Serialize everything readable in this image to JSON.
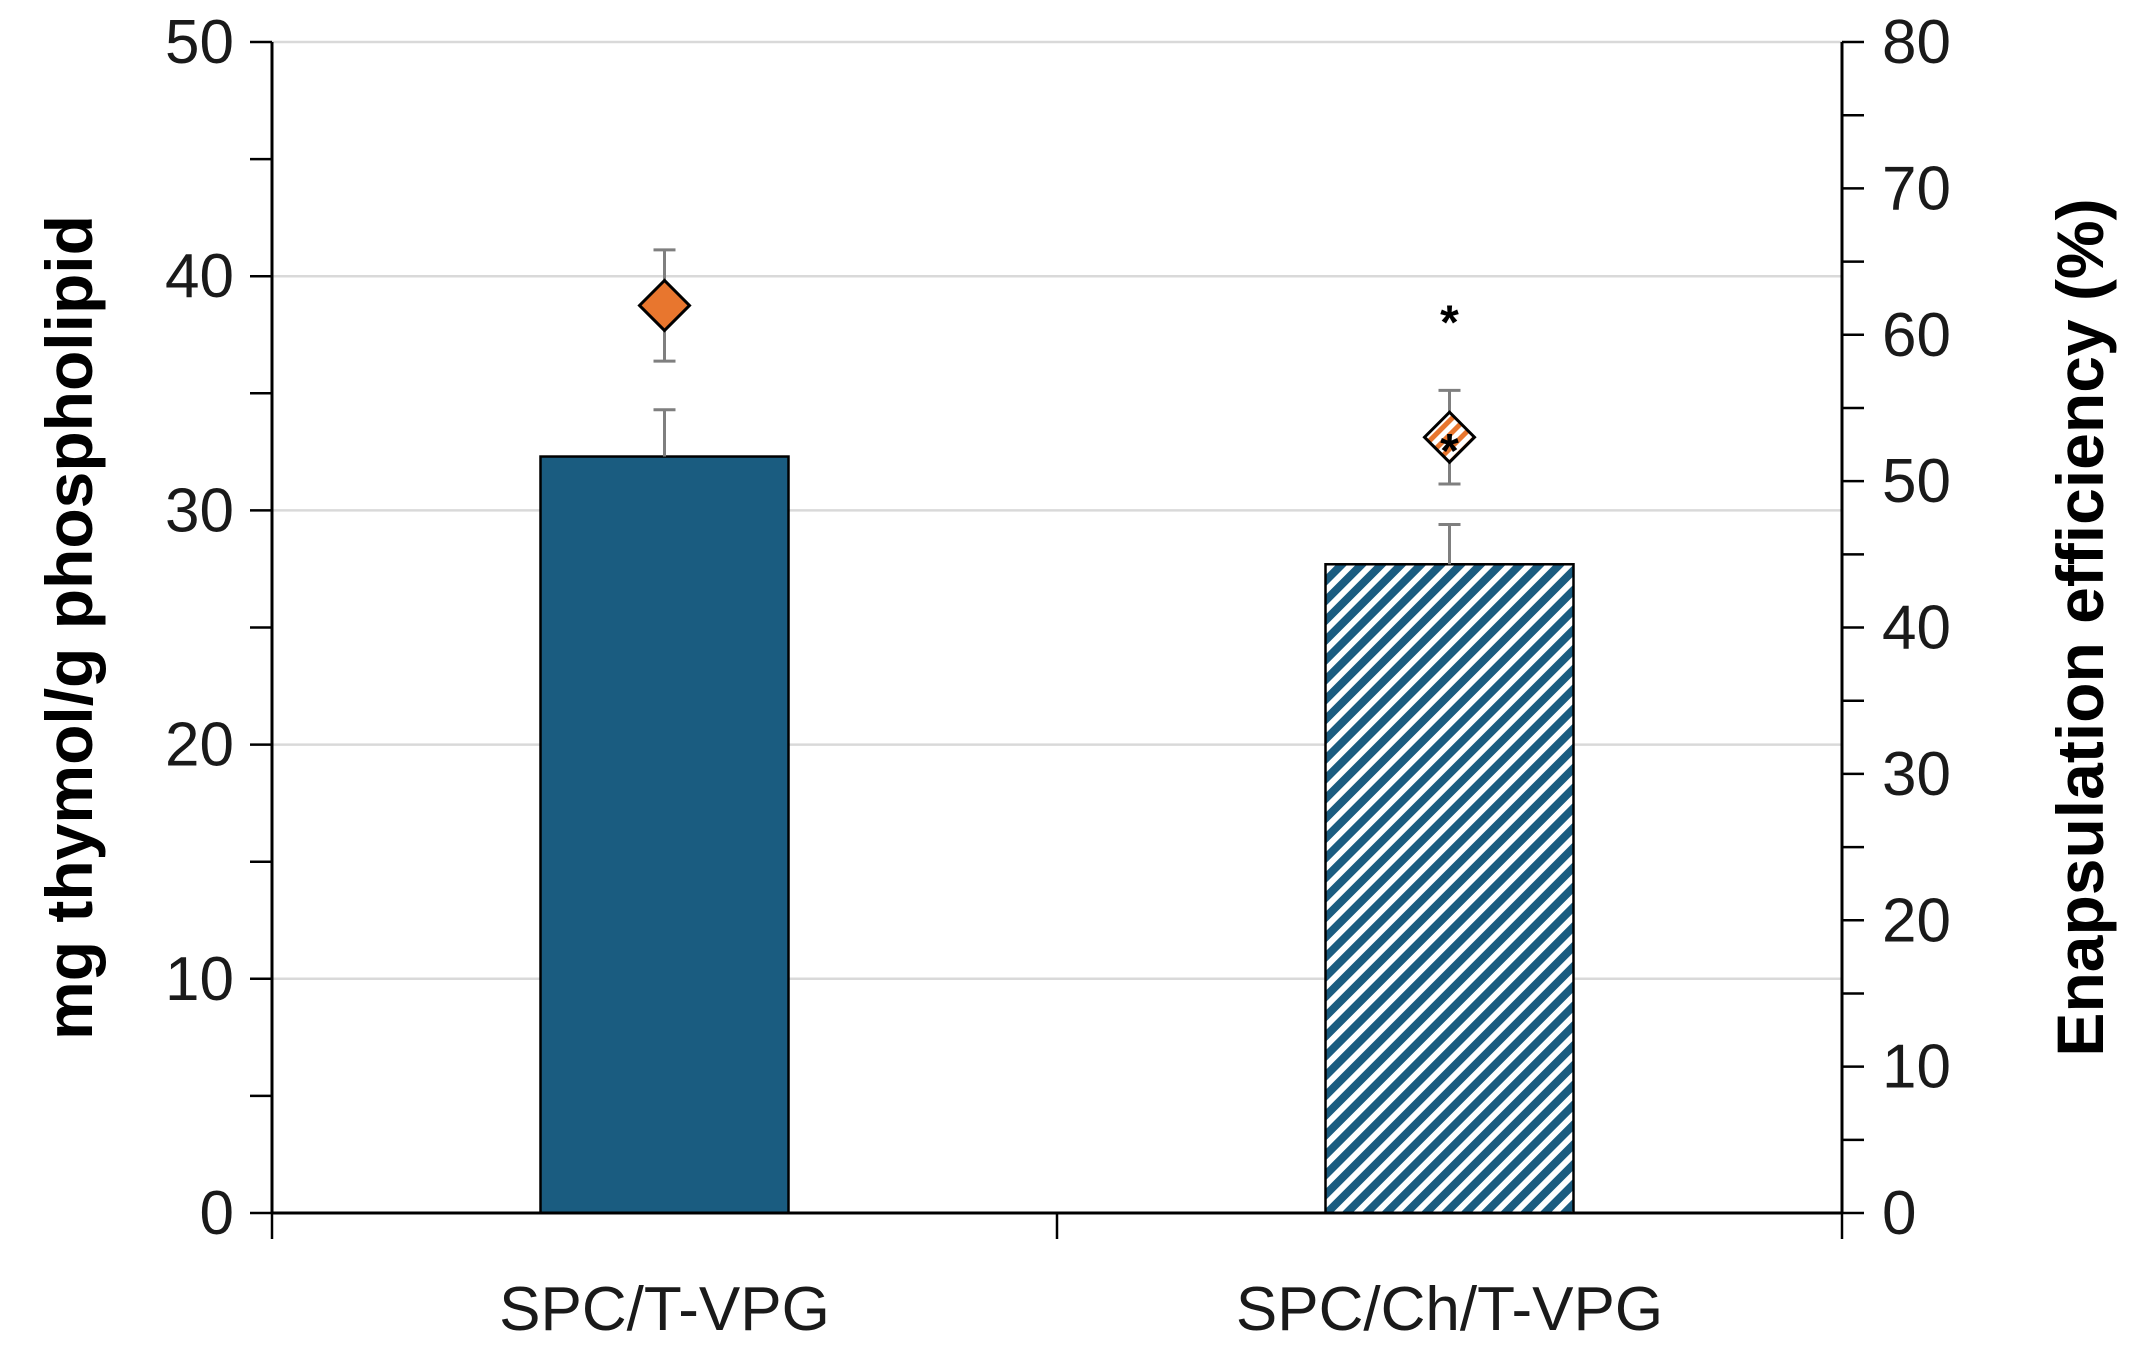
{
  "chart_data": {
    "type": "bar",
    "title": "",
    "categories": [
      "SPC/T-VPG",
      "SPC/Ch/T-VPG"
    ],
    "ylabel": "mg thymol/g phospholipid",
    "y2label": "Enapsulation efficiency (%)",
    "ylim": [
      0,
      50
    ],
    "y2lim": [
      0,
      80
    ],
    "yticks": [
      "0",
      "10",
      "20",
      "30",
      "40",
      "50"
    ],
    "y2ticks": [
      "0",
      "10",
      "20",
      "30",
      "40",
      "50",
      "60",
      "70",
      "80"
    ],
    "grid": true,
    "series": [
      {
        "name": "mg thymol/g phospholipid",
        "kind": "bar",
        "axis": "left",
        "values": [
          32.3,
          27.7
        ],
        "errors": [
          2.0,
          1.7
        ],
        "fills": [
          "solid",
          "hatched"
        ]
      },
      {
        "name": "Enapsulation efficiency (%)",
        "kind": "diamond",
        "axis": "right",
        "values": [
          62.0,
          53.0
        ],
        "errors": [
          3.8,
          3.2
        ],
        "fills": [
          "solid",
          "hatched"
        ]
      }
    ],
    "annotations": [
      {
        "category": "SPC/Ch/T-VPG",
        "text": "*",
        "position": "above-diamond"
      },
      {
        "category": "SPC/Ch/T-VPG",
        "text": "*",
        "position": "on-diamond"
      }
    ],
    "colors": {
      "bar": "#1a5c80",
      "diamond": "#e8762e",
      "grid": "#d9d9d9",
      "axis": "#000000",
      "error": "#7f7f7f"
    }
  }
}
